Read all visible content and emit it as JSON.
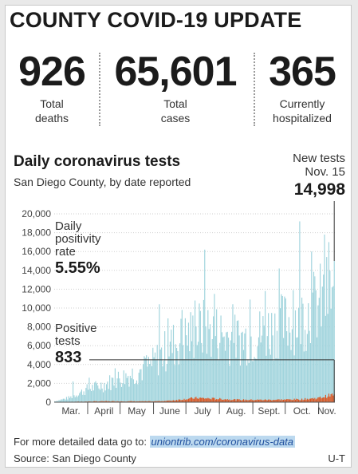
{
  "headline": "COUNTY COVID-19 UPDATE",
  "stats": [
    {
      "value": "926",
      "label_line1": "Total",
      "label_line2": "deaths"
    },
    {
      "value": "65,601",
      "label_line1": "Total",
      "label_line2": "cases"
    },
    {
      "value": "365",
      "label_line1": "Currently",
      "label_line2": "hospitalized"
    }
  ],
  "callout": {
    "line1": "New tests",
    "line2": "Nov. 15",
    "value": "14,998"
  },
  "annotations": {
    "positivity": {
      "line1": "Daily",
      "line2": "positivity",
      "line3": "rate",
      "value": "5.55%"
    },
    "positive": {
      "line1": "Positive",
      "line2": "tests",
      "value": "833"
    }
  },
  "footer": {
    "prefix": "For more detailed data go to: ",
    "link": "uniontrib.com/coronavirus-data",
    "source": "Source: San Diego County",
    "credit": "U-T"
  },
  "colors": {
    "tests": "#9fd3dc",
    "positive": "#d9531e",
    "text": "#1b1b1b"
  },
  "chart_data": {
    "type": "bar",
    "title": "Daily coronavirus tests",
    "subtitle": "San Diego County, by date reported",
    "x_tick_labels": [
      "Mar.",
      "April",
      "May",
      "June",
      "July",
      "Aug.",
      "Sept.",
      "Oct.",
      "Nov."
    ],
    "y_tick_labels": [
      "0",
      "2,000",
      "4,000",
      "6,000",
      "8,000",
      "10,000",
      "12,000",
      "14,000",
      "16,000",
      "18,000",
      "20,000"
    ],
    "ylim": [
      0,
      20000
    ],
    "grid": true,
    "x_start": "2020-03-01",
    "x_end": "2020-11-15",
    "series": [
      {
        "name": "Daily tests",
        "key": "tests",
        "anchors": [
          [
            "2020-03-01",
            100
          ],
          [
            "2020-03-15",
            500
          ],
          [
            "2020-03-31",
            1400
          ],
          [
            "2020-04-15",
            1900
          ],
          [
            "2020-04-30",
            2600
          ],
          [
            "2020-05-15",
            3200
          ],
          [
            "2020-05-31",
            4200
          ],
          [
            "2020-06-15",
            6000
          ],
          [
            "2020-06-30",
            7000
          ],
          [
            "2020-07-15",
            8000
          ],
          [
            "2020-07-31",
            7500
          ],
          [
            "2020-08-15",
            6800
          ],
          [
            "2020-08-31",
            7000
          ],
          [
            "2020-09-15",
            7800
          ],
          [
            "2020-09-30",
            8500
          ],
          [
            "2020-10-15",
            9300
          ],
          [
            "2020-10-31",
            10500
          ],
          [
            "2020-11-14",
            12000
          ]
        ],
        "spikes": [
          [
            "2020-03-18",
            2200
          ],
          [
            "2020-04-02",
            2600
          ],
          [
            "2020-04-26",
            3600
          ],
          [
            "2020-05-24",
            4700
          ],
          [
            "2020-06-06",
            10400
          ],
          [
            "2020-06-14",
            8900
          ],
          [
            "2020-06-27",
            9800
          ],
          [
            "2020-07-09",
            10800
          ],
          [
            "2020-07-18",
            16200
          ],
          [
            "2020-07-27",
            11500
          ],
          [
            "2020-08-13",
            10400
          ],
          [
            "2020-08-29",
            10900
          ],
          [
            "2020-09-12",
            11800
          ],
          [
            "2020-09-25",
            14200
          ],
          [
            "2020-10-08",
            11900
          ],
          [
            "2020-10-14",
            19200
          ],
          [
            "2020-10-25",
            16000
          ],
          [
            "2020-11-06",
            17800
          ],
          [
            "2020-11-10",
            17000
          ],
          [
            "2020-11-15",
            14998
          ]
        ]
      },
      {
        "name": "Positive tests",
        "key": "positive",
        "anchors": [
          [
            "2020-03-01",
            10
          ],
          [
            "2020-04-15",
            100
          ],
          [
            "2020-05-31",
            90
          ],
          [
            "2020-06-15",
            150
          ],
          [
            "2020-07-10",
            450
          ],
          [
            "2020-07-31",
            350
          ],
          [
            "2020-08-20",
            250
          ],
          [
            "2020-09-15",
            250
          ],
          [
            "2020-10-15",
            300
          ],
          [
            "2020-11-01",
            450
          ],
          [
            "2020-11-10",
            700
          ],
          [
            "2020-11-15",
            833
          ]
        ]
      }
    ],
    "highlight": {
      "date": "2020-11-15",
      "tests": 14998,
      "positive": 833
    }
  }
}
